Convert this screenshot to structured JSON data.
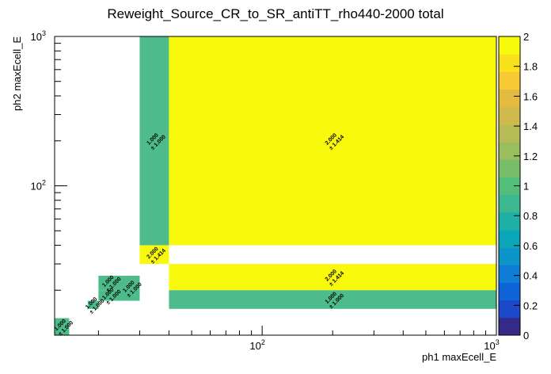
{
  "chart_data": {
    "type": "heatmap",
    "title": "Reweight_Source_CR_to_SR_antiTT_rho440-2000 total",
    "xlabel": "ph1 maxEcell_E",
    "ylabel": "ph2 maxEcell_E",
    "x_scale": "log",
    "y_scale": "log",
    "xlim": [
      13,
      1000
    ],
    "ylim": [
      10,
      1000
    ],
    "x_ticks": [
      {
        "value": 100,
        "base": "10",
        "exp": "2"
      },
      {
        "value": 1000,
        "base": "10",
        "exp": "3"
      }
    ],
    "y_ticks": [
      {
        "value": 100,
        "base": "10",
        "exp": "2"
      },
      {
        "value": 1000,
        "base": "10",
        "exp": "3"
      }
    ],
    "zlim": [
      0,
      2
    ],
    "z_ticks": [
      "0",
      "0.2",
      "0.4",
      "0.6",
      "0.8",
      "1",
      "1.2",
      "1.4",
      "1.6",
      "1.8",
      "2"
    ],
    "cells": [
      {
        "x0": 13,
        "x1": 15,
        "y0": 10,
        "y1": 13,
        "value": 1.0,
        "label": "1.000",
        "error": "± 1.000"
      },
      {
        "x0": 18,
        "x1": 20,
        "y0": 15,
        "y1": 17,
        "value": 1.0,
        "label": "1.000",
        "error": "± 1.000"
      },
      {
        "x0": 20,
        "x1": 25,
        "y0": 17,
        "y1": 20,
        "value": 1.0,
        "label": "1.000",
        "error": "± 1.000"
      },
      {
        "x0": 20,
        "x1": 25,
        "y0": 20,
        "y1": 25,
        "value": 1.0,
        "label": "1.000",
        "error": "± 1.000"
      },
      {
        "x0": 25,
        "x1": 30,
        "y0": 17,
        "y1": 25,
        "value": 1.0,
        "label": "1.000",
        "error": "± 1.000"
      },
      {
        "x0": 30,
        "x1": 40,
        "y0": 40,
        "y1": 1000,
        "value": 1.0,
        "label": "1.000",
        "error": "± 1.000"
      },
      {
        "x0": 30,
        "x1": 40,
        "y0": 30,
        "y1": 40,
        "value": 2.0,
        "label": "2.000",
        "error": "± 1.414"
      },
      {
        "x0": 40,
        "x1": 1000,
        "y0": 40,
        "y1": 1000,
        "value": 2.0,
        "label": "2.000",
        "error": "± 1.414"
      },
      {
        "x0": 40,
        "x1": 1000,
        "y0": 20,
        "y1": 30,
        "value": 2.0,
        "label": "2.000",
        "error": "± 1.414"
      },
      {
        "x0": 40,
        "x1": 1000,
        "y0": 15,
        "y1": 20,
        "value": 1.0,
        "label": "1.000",
        "error": "± 1.000"
      }
    ],
    "palette": [
      "#352a87",
      "#1b49c7",
      "#0f64d8",
      "#0f7dd5",
      "#0c95c9",
      "#0aa6b8",
      "#1eafa5",
      "#3cb890",
      "#53bd7a",
      "#78bd6a",
      "#9abd5d",
      "#b8bc56",
      "#d0ba4d",
      "#e5ba40",
      "#f7c932",
      "#f9e21c",
      "#f9fb0e"
    ],
    "colors": {
      "value_1": "#4dbc8a",
      "value_2": "#f9f90e"
    },
    "grid": false,
    "legend": "right color palette"
  }
}
